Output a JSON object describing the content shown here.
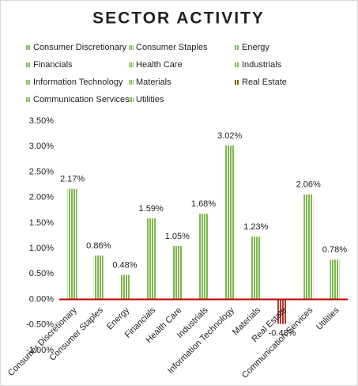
{
  "chart_data": {
    "type": "bar",
    "title": "SECTOR ACTIVITY",
    "categories": [
      "Consumer Discretionary",
      "Consumer Staples",
      "Energy",
      "Financials",
      "Health Care",
      "Industrials",
      "Information Technology",
      "Materials",
      "Real Estate",
      "Communication Services",
      "Utilities"
    ],
    "values": [
      2.17,
      0.86,
      0.48,
      1.59,
      1.05,
      1.68,
      3.02,
      1.23,
      -0.48,
      2.06,
      0.78
    ],
    "value_labels": [
      "2.17%",
      "0.86%",
      "0.48%",
      "1.59%",
      "1.05%",
      "1.68%",
      "3.02%",
      "1.23%",
      "-0.48%",
      "2.06%",
      "0.78%"
    ],
    "colors": [
      "#7fb84e",
      "#7fb84e",
      "#7fb84e",
      "#7fb84e",
      "#7fb84e",
      "#7fb84e",
      "#7fb84e",
      "#7fb84e",
      "#b8372a",
      "#7fb84e",
      "#7fb84e"
    ],
    "legend_colors": [
      "#7fb84e",
      "#7fb84e",
      "#7fb84e",
      "#7fb84e",
      "#7fb84e",
      "#7fb84e",
      "#7fb84e",
      "#7fb84e",
      "#7f6000",
      "#7fb84e",
      "#7fb84e"
    ],
    "ylim": [
      -1,
      3.5
    ],
    "yticks": [
      {
        "value": -1,
        "label": "-1.00%"
      },
      {
        "value": -0.5,
        "label": "-0.50%"
      },
      {
        "value": 0,
        "label": "0.00%"
      },
      {
        "value": 0.5,
        "label": "0.50%"
      },
      {
        "value": 1,
        "label": "1.00%"
      },
      {
        "value": 1.5,
        "label": "1.50%"
      },
      {
        "value": 2,
        "label": "2.00%"
      },
      {
        "value": 2.5,
        "label": "2.50%"
      },
      {
        "value": 3,
        "label": "3.00%"
      },
      {
        "value": 3.5,
        "label": "3.50%"
      }
    ],
    "zero_line_color": "#c00000"
  }
}
